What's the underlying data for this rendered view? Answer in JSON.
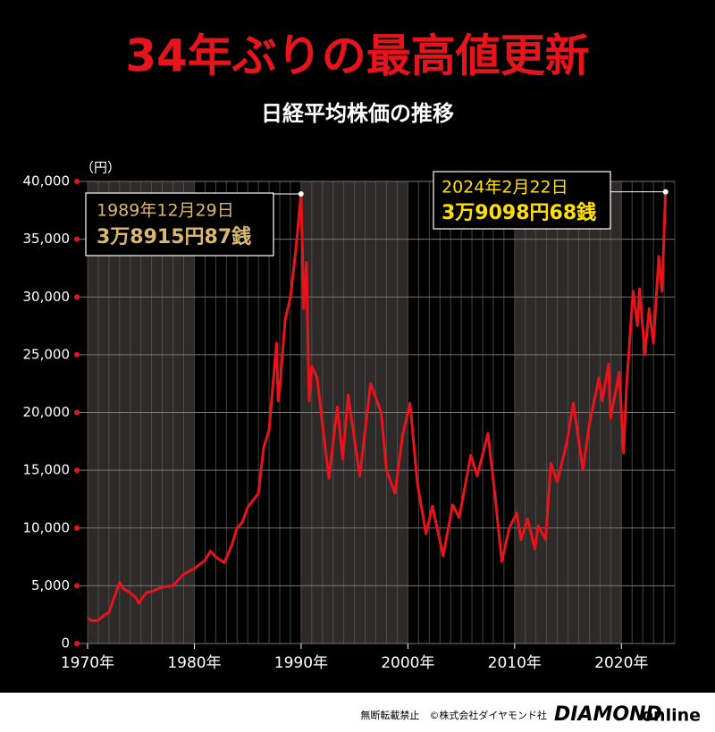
{
  "chart_data": {
    "type": "line",
    "title": "34年ぶりの最高値更新",
    "subtitle": "日経平均株価の推移",
    "y_unit": "（円）",
    "annotations": [
      {
        "date": "1989年12月29日",
        "value_text": "3万8915円87銭"
      },
      {
        "date": "2024年2月22日",
        "value_text": "3万9098円68銭"
      }
    ],
    "footer": {
      "notice": "無断転載禁止　©株式会社ダイヤモンド社",
      "brand": "DIAMOND",
      "brand_suffix": "online"
    },
    "xlim": [
      1970,
      2025
    ],
    "xticks": [
      {
        "value": 1970,
        "label": "1970年"
      },
      {
        "value": 1980,
        "label": "1980年"
      },
      {
        "value": 1990,
        "label": "1990年"
      },
      {
        "value": 2000,
        "label": "2000年"
      },
      {
        "value": 2010,
        "label": "2010年"
      },
      {
        "value": 2020,
        "label": "2020年"
      }
    ],
    "ylim": [
      0,
      40000
    ],
    "yticks": [
      0,
      {
        "value": 5000,
        "label": "5,000"
      },
      {
        "value": 10000,
        "label": "10,000"
      },
      {
        "value": 15000,
        "label": "15,000"
      },
      {
        "value": 20000,
        "label": "20,000"
      },
      {
        "value": 25000,
        "label": "25,000"
      },
      {
        "value": 30000,
        "label": "30,000"
      },
      {
        "value": 35000,
        "label": "35,000"
      },
      {
        "value": 40000,
        "label": "40,000"
      }
    ],
    "grid": true,
    "series": [
      {
        "name": "日経平均株価",
        "color": "#e8141b",
        "x": [
          1970,
          1970.5,
          1971,
          1971.5,
          1972,
          1972.5,
          1973,
          1973.3,
          1973.8,
          1974.5,
          1974.8,
          1975.5,
          1976,
          1977,
          1978,
          1978.5,
          1979,
          1980,
          1981,
          1981.5,
          1982,
          1982.8,
          1983.5,
          1984,
          1984.5,
          1985,
          1986,
          1986.5,
          1987,
          1987.7,
          1987.85,
          1988,
          1988.5,
          1989,
          1989.5,
          1989.99,
          1990.25,
          1990.5,
          1990.75,
          1991,
          1991.5,
          1992.6,
          1993.4,
          1993.9,
          1994.4,
          1995.5,
          1996.5,
          1997.5,
          1998,
          1998.8,
          1999.5,
          2000.2,
          2000.9,
          2001.7,
          2002.3,
          2003.3,
          2004.2,
          2004.8,
          2005.9,
          2006.5,
          2007.5,
          2008.2,
          2008.8,
          2009.5,
          2010.2,
          2010.6,
          2011.2,
          2011.9,
          2012.2,
          2012.9,
          2013.4,
          2014,
          2014.9,
          2015.5,
          2016.4,
          2017,
          2017.9,
          2018.2,
          2018.8,
          2018.99,
          2019.8,
          2020.2,
          2020.5,
          2021.1,
          2021.5,
          2021.7,
          2022.2,
          2022.6,
          2023,
          2023.5,
          2023.8,
          2024.14
        ],
        "values": [
          2200,
          1950,
          2000,
          2400,
          2700,
          4000,
          5300,
          4800,
          4500,
          4000,
          3500,
          4400,
          4500,
          4900,
          5000,
          5500,
          6000,
          6500,
          7200,
          8000,
          7500,
          7000,
          8500,
          10000,
          10500,
          11800,
          13000,
          17000,
          18500,
          26000,
          21000,
          22000,
          28000,
          30000,
          34000,
          38915.87,
          29000,
          33000,
          21000,
          24000,
          23000,
          14300,
          20500,
          16000,
          21500,
          14500,
          22500,
          20000,
          15000,
          13000,
          18000,
          20800,
          13800,
          9500,
          11900,
          7600,
          12000,
          10900,
          16300,
          14500,
          18200,
          12500,
          7100,
          10000,
          11300,
          9000,
          10800,
          8200,
          10200,
          9000,
          15600,
          14000,
          17500,
          20800,
          15000,
          19000,
          23000,
          21000,
          24200,
          19500,
          23500,
          16500,
          22500,
          30500,
          27500,
          30700,
          25000,
          29000,
          26000,
          33500,
          30500,
          39098.68
        ]
      }
    ]
  }
}
